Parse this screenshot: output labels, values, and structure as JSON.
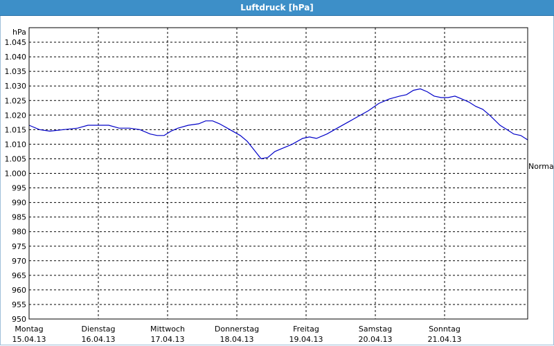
{
  "window": {
    "title": "Luftdruck [hPa]"
  },
  "chart_data": {
    "type": "line",
    "title": "Luftdruck [hPa]",
    "ylabel": "hPa",
    "ylim": [
      950,
      1050
    ],
    "yticks": [
      "950",
      "955",
      "960",
      "965",
      "970",
      "975",
      "980",
      "985",
      "990",
      "995",
      "1.000",
      "1.005",
      "1.010",
      "1.015",
      "1.020",
      "1.025",
      "1.030",
      "1.035",
      "1.040",
      "1.045"
    ],
    "ytick_values": [
      950,
      955,
      960,
      965,
      970,
      975,
      980,
      985,
      990,
      995,
      1000,
      1005,
      1010,
      1015,
      1020,
      1025,
      1030,
      1035,
      1040,
      1045
    ],
    "xlim": [
      0,
      7.2
    ],
    "xticks": [
      {
        "day": "Montag",
        "date": "15.04.13"
      },
      {
        "day": "Dienstag",
        "date": "16.04.13"
      },
      {
        "day": "Mittwoch",
        "date": "17.04.13"
      },
      {
        "day": "Donnerstag",
        "date": "18.04.13"
      },
      {
        "day": "Freitag",
        "date": "19.04.13"
      },
      {
        "day": "Samstag",
        "date": "20.04.13"
      },
      {
        "day": "Sonntag",
        "date": "21.04.13"
      }
    ],
    "grid": true,
    "reference_line": {
      "label": "Normal",
      "value": 1002.5
    },
    "series": [
      {
        "color": "#0000c8",
        "x": [
          0.0,
          0.15,
          0.3,
          0.5,
          0.7,
          0.85,
          1.0,
          1.15,
          1.3,
          1.45,
          1.6,
          1.75,
          1.85,
          1.95,
          2.05,
          2.15,
          2.3,
          2.45,
          2.55,
          2.65,
          2.75,
          2.9,
          3.05,
          3.15,
          3.25,
          3.35,
          3.45,
          3.55,
          3.65,
          3.8,
          3.95,
          4.05,
          4.15,
          4.3,
          4.45,
          4.6,
          4.75,
          4.9,
          5.05,
          5.2,
          5.35,
          5.45,
          5.55,
          5.65,
          5.75,
          5.85,
          5.95,
          6.05,
          6.15,
          6.25,
          6.35,
          6.45,
          6.55,
          6.65,
          6.8,
          6.9,
          7.0,
          7.1,
          7.2
        ],
        "y": [
          1016.5,
          1015,
          1014.5,
          1015,
          1015.5,
          1016.5,
          1016.5,
          1016.5,
          1015.5,
          1015.5,
          1015,
          1013.5,
          1013,
          1013,
          1014.5,
          1015.5,
          1016.5,
          1017,
          1018,
          1018,
          1017,
          1015,
          1013,
          1011,
          1008,
          1005,
          1005.5,
          1007.5,
          1008.5,
          1010,
          1012,
          1012.5,
          1012,
          1013.5,
          1015.5,
          1017.5,
          1019.5,
          1021.5,
          1024,
          1025.5,
          1026.5,
          1027,
          1028.5,
          1029,
          1028,
          1026.5,
          1026,
          1026,
          1026.5,
          1025.5,
          1024.5,
          1023,
          1022,
          1020,
          1016.5,
          1015,
          1013.5,
          1013,
          1011.5
        ]
      }
    ]
  }
}
